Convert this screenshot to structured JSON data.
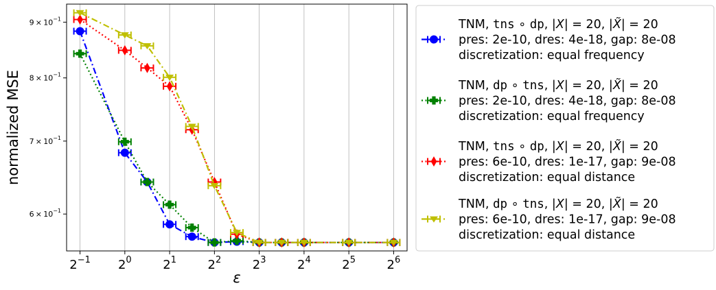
{
  "chart_data": {
    "type": "line",
    "xlabel": "ε",
    "ylabel": "normalized MSE",
    "x_scale": "log2",
    "y_scale": "log",
    "xlim_exponent": [
      -1.3,
      6.3
    ],
    "ylim": [
      0.555,
      0.935
    ],
    "grid": "vertical",
    "x_ticks": [
      {
        "base": "2",
        "exp": "−1",
        "value": 0.5
      },
      {
        "base": "2",
        "exp": "0",
        "value": 1
      },
      {
        "base": "2",
        "exp": "1",
        "value": 2
      },
      {
        "base": "2",
        "exp": "2",
        "value": 4
      },
      {
        "base": "2",
        "exp": "3",
        "value": 8
      },
      {
        "base": "2",
        "exp": "4",
        "value": 16
      },
      {
        "base": "2",
        "exp": "5",
        "value": 32
      },
      {
        "base": "2",
        "exp": "6",
        "value": 64
      }
    ],
    "y_ticks": [
      {
        "mant": "6",
        "times": "×",
        "base": "10",
        "exp": "−1",
        "value": 0.6
      },
      {
        "mant": "7",
        "times": "×",
        "base": "10",
        "exp": "−1",
        "value": 0.7
      },
      {
        "mant": "8",
        "times": "×",
        "base": "10",
        "exp": "−1",
        "value": 0.8
      },
      {
        "mant": "9",
        "times": "×",
        "base": "10",
        "exp": "−1",
        "value": 0.9
      }
    ],
    "legend_position": "outside-right",
    "series": [
      {
        "color": "#0000ff",
        "marker": "circle",
        "linestyle": "dashdot",
        "x": [
          0.5,
          1,
          1.414,
          2,
          2.828,
          4,
          5.657,
          8,
          11.314,
          16,
          32,
          64
        ],
        "y": [
          0.883,
          0.683,
          0.642,
          0.587,
          0.572,
          0.565,
          0.566,
          0.565,
          0.565,
          0.565,
          0.565,
          0.565
        ],
        "legend": {
          "line1": {
            "pre": "TNM, ",
            "m1": "tns",
            "op": " ∘ ",
            "m2": "dp",
            "post1": ", |",
            "var1": "X",
            "mid": "| = 20, |",
            "var2": "X̃",
            "end": "| = 20"
          },
          "line2": "pres: 2e-10, dres: 4e-18, gap: 8e-08",
          "line3": "discretization: equal frequency"
        }
      },
      {
        "color": "#008000",
        "marker": "plus",
        "linestyle": "dotted",
        "x": [
          0.5,
          1,
          1.414,
          2,
          2.828,
          4,
          5.657,
          8,
          11.314,
          16,
          32,
          64
        ],
        "y": [
          0.842,
          0.699,
          0.642,
          0.612,
          0.583,
          0.565,
          0.567,
          0.565,
          0.565,
          0.565,
          0.565,
          0.565
        ],
        "legend": {
          "line1": {
            "pre": "TNM, ",
            "m1": "dp",
            "op": " ∘ ",
            "m2": "tns",
            "post1": ", |",
            "var1": "X",
            "mid": "| = 20, |",
            "var2": "X̃",
            "end": "| = 20"
          },
          "line2": "pres: 2e-10, dres: 4e-18, gap: 8e-08",
          "line3": "discretization: equal frequency"
        }
      },
      {
        "color": "#ff0000",
        "marker": "diamond",
        "linestyle": "dotted",
        "x": [
          0.5,
          1,
          1.414,
          2,
          2.828,
          4,
          5.657,
          8,
          11.314,
          16,
          32,
          64
        ],
        "y": [
          0.905,
          0.848,
          0.817,
          0.786,
          0.717,
          0.642,
          0.575,
          0.565,
          0.565,
          0.565,
          0.565,
          0.565
        ],
        "legend": {
          "line1": {
            "pre": "TNM, ",
            "m1": "tns",
            "op": " ∘ ",
            "m2": "dp",
            "post1": ", |",
            "var1": "X",
            "mid": "| = 20, |",
            "var2": "X̃",
            "end": "| = 20"
          },
          "line2": "pres: 6e-10, dres: 1e-17, gap: 9e-08",
          "line3": "discretization: equal distance"
        }
      },
      {
        "color": "#bfbf00",
        "marker": "triangle-down",
        "linestyle": "dashdot",
        "x": [
          0.5,
          1,
          1.414,
          2,
          2.828,
          4,
          5.657,
          8,
          11.314,
          16,
          32,
          64
        ],
        "y": [
          0.918,
          0.876,
          0.856,
          0.801,
          0.722,
          0.637,
          0.577,
          0.565,
          0.565,
          0.565,
          0.565,
          0.565
        ],
        "legend": {
          "line1": {
            "pre": "TNM, ",
            "m1": "dp",
            "op": " ∘ ",
            "m2": "tns",
            "post1": ", |",
            "var1": "X",
            "mid": "| = 20, |",
            "var2": "X̃",
            "end": "| = 20"
          },
          "line2": "pres: 6e-10, dres: 1e-17, gap: 9e-08",
          "line3": "discretization: equal distance"
        }
      }
    ]
  }
}
